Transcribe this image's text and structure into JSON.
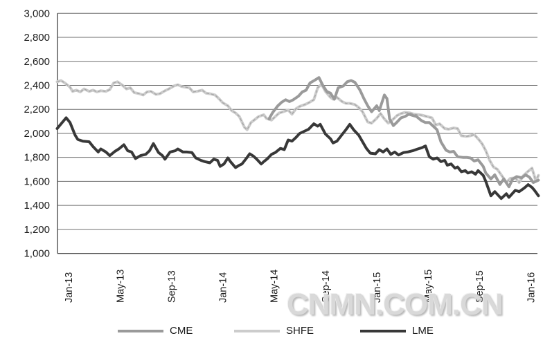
{
  "watermark": "CNMN.COM.CN",
  "chart_data": {
    "type": "line",
    "title": "",
    "xlabel": "",
    "ylabel": "",
    "ylim": [
      1000,
      3000
    ],
    "y_tick_step": 200,
    "y_tick_labels": [
      "1,000",
      "1,200",
      "1,400",
      "1,600",
      "1,800",
      "2,000",
      "2,200",
      "2,400",
      "2,600",
      "2,800",
      "3,000"
    ],
    "x_tick_labels": [
      "Jan-13",
      "May-13",
      "Sep-13",
      "Jan-14",
      "May-14",
      "Sep-14",
      "Jan-15",
      "May-15",
      "Sep-15",
      "Jan-16"
    ],
    "x_range_months": [
      -0.9,
      36.6
    ],
    "grid": "horizontal",
    "legend_position": "bottom",
    "legend": [
      {
        "label": "CME",
        "color": "#9a9a9a"
      },
      {
        "label": "SHFE",
        "color": "#cccccc"
      },
      {
        "label": "LME",
        "color": "#383838"
      }
    ],
    "series": [
      {
        "name": "SHFE",
        "color": "#cccccc",
        "style": "light-with-dashed-core",
        "points": [
          [
            -0.9,
            2430
          ],
          [
            -0.6,
            2440
          ],
          [
            -0.3,
            2420
          ],
          [
            0.1,
            2385
          ],
          [
            0.3,
            2350
          ],
          [
            0.6,
            2360
          ],
          [
            0.9,
            2345
          ],
          [
            1.2,
            2370
          ],
          [
            1.6,
            2350
          ],
          [
            1.9,
            2360
          ],
          [
            2.2,
            2345
          ],
          [
            2.5,
            2355
          ],
          [
            2.9,
            2350
          ],
          [
            3.2,
            2365
          ],
          [
            3.5,
            2420
          ],
          [
            3.8,
            2430
          ],
          [
            4.2,
            2400
          ],
          [
            4.5,
            2370
          ],
          [
            4.8,
            2380
          ],
          [
            5.1,
            2340
          ],
          [
            5.5,
            2330
          ],
          [
            5.8,
            2320
          ],
          [
            6.1,
            2345
          ],
          [
            6.4,
            2350
          ],
          [
            6.8,
            2325
          ],
          [
            7.1,
            2330
          ],
          [
            7.5,
            2355
          ],
          [
            7.8,
            2370
          ],
          [
            8.2,
            2395
          ],
          [
            8.5,
            2405
          ],
          [
            8.8,
            2390
          ],
          [
            9.1,
            2385
          ],
          [
            9.4,
            2380
          ],
          [
            9.7,
            2345
          ],
          [
            10.0,
            2350
          ],
          [
            10.4,
            2360
          ],
          [
            10.7,
            2335
          ],
          [
            11.0,
            2330
          ],
          [
            11.4,
            2320
          ],
          [
            11.7,
            2290
          ],
          [
            12.0,
            2255
          ],
          [
            12.4,
            2230
          ],
          [
            12.7,
            2190
          ],
          [
            13.0,
            2170
          ],
          [
            13.3,
            2140
          ],
          [
            13.7,
            2050
          ],
          [
            13.9,
            2030
          ],
          [
            14.2,
            2090
          ],
          [
            14.5,
            2115
          ],
          [
            14.8,
            2140
          ],
          [
            15.2,
            2155
          ],
          [
            15.4,
            2125
          ],
          [
            15.8,
            2110
          ],
          [
            16.1,
            2140
          ],
          [
            16.4,
            2170
          ],
          [
            16.7,
            2180
          ],
          [
            17.1,
            2195
          ],
          [
            17.4,
            2160
          ],
          [
            17.7,
            2205
          ],
          [
            18.0,
            2225
          ],
          [
            18.4,
            2240
          ],
          [
            18.7,
            2255
          ],
          [
            19.1,
            2280
          ],
          [
            19.4,
            2380
          ],
          [
            19.7,
            2410
          ],
          [
            20.0,
            2350
          ],
          [
            20.4,
            2300
          ],
          [
            20.6,
            2285
          ],
          [
            20.9,
            2300
          ],
          [
            21.3,
            2265
          ],
          [
            21.6,
            2250
          ],
          [
            21.9,
            2250
          ],
          [
            22.3,
            2240
          ],
          [
            22.6,
            2215
          ],
          [
            22.9,
            2180
          ],
          [
            23.3,
            2095
          ],
          [
            23.6,
            2085
          ],
          [
            24.0,
            2125
          ],
          [
            24.3,
            2165
          ],
          [
            24.6,
            2120
          ],
          [
            24.9,
            2085
          ],
          [
            25.2,
            2110
          ],
          [
            25.6,
            2150
          ],
          [
            25.9,
            2165
          ],
          [
            26.2,
            2175
          ],
          [
            26.6,
            2170
          ],
          [
            26.9,
            2160
          ],
          [
            27.3,
            2155
          ],
          [
            27.6,
            2150
          ],
          [
            27.9,
            2140
          ],
          [
            28.3,
            2130
          ],
          [
            28.6,
            2070
          ],
          [
            28.9,
            2080
          ],
          [
            29.3,
            2040
          ],
          [
            29.6,
            2035
          ],
          [
            30.0,
            2045
          ],
          [
            30.3,
            2040
          ],
          [
            30.6,
            1980
          ],
          [
            31.0,
            1975
          ],
          [
            31.3,
            1980
          ],
          [
            31.6,
            1990
          ],
          [
            31.9,
            1955
          ],
          [
            32.2,
            1915
          ],
          [
            32.5,
            1855
          ],
          [
            32.8,
            1775
          ],
          [
            33.1,
            1720
          ],
          [
            33.4,
            1700
          ],
          [
            33.8,
            1640
          ],
          [
            34.1,
            1590
          ],
          [
            34.4,
            1625
          ],
          [
            34.8,
            1630
          ],
          [
            35.1,
            1590
          ],
          [
            35.4,
            1645
          ],
          [
            35.7,
            1675
          ],
          [
            36.1,
            1710
          ],
          [
            36.3,
            1640
          ],
          [
            36.4,
            1600
          ],
          [
            36.6,
            1650
          ]
        ]
      },
      {
        "name": "CME",
        "color": "#9a9a9a",
        "style": "solid",
        "points": [
          [
            15.6,
            2120
          ],
          [
            15.9,
            2175
          ],
          [
            16.3,
            2230
          ],
          [
            16.6,
            2260
          ],
          [
            16.9,
            2280
          ],
          [
            17.2,
            2265
          ],
          [
            17.5,
            2280
          ],
          [
            17.9,
            2310
          ],
          [
            18.2,
            2345
          ],
          [
            18.5,
            2360
          ],
          [
            18.8,
            2420
          ],
          [
            19.2,
            2445
          ],
          [
            19.5,
            2465
          ],
          [
            19.8,
            2400
          ],
          [
            20.1,
            2350
          ],
          [
            20.4,
            2335
          ],
          [
            20.7,
            2285
          ],
          [
            21.0,
            2380
          ],
          [
            21.4,
            2395
          ],
          [
            21.7,
            2430
          ],
          [
            22.0,
            2440
          ],
          [
            22.3,
            2425
          ],
          [
            22.7,
            2360
          ],
          [
            23.0,
            2290
          ],
          [
            23.3,
            2230
          ],
          [
            23.6,
            2180
          ],
          [
            24.0,
            2230
          ],
          [
            24.2,
            2190
          ],
          [
            24.6,
            2320
          ],
          [
            24.8,
            2290
          ],
          [
            25.0,
            2120
          ],
          [
            25.3,
            2065
          ],
          [
            25.5,
            2085
          ],
          [
            25.9,
            2130
          ],
          [
            26.2,
            2140
          ],
          [
            26.5,
            2160
          ],
          [
            26.8,
            2150
          ],
          [
            27.1,
            2140
          ],
          [
            27.5,
            2105
          ],
          [
            27.8,
            2090
          ],
          [
            28.1,
            2090
          ],
          [
            28.4,
            2060
          ],
          [
            28.7,
            2030
          ],
          [
            29.0,
            1930
          ],
          [
            29.4,
            1860
          ],
          [
            29.7,
            1845
          ],
          [
            30.0,
            1850
          ],
          [
            30.3,
            1805
          ],
          [
            30.7,
            1800
          ],
          [
            31.0,
            1800
          ],
          [
            31.3,
            1795
          ],
          [
            31.6,
            1770
          ],
          [
            31.9,
            1780
          ],
          [
            32.3,
            1725
          ],
          [
            32.5,
            1670
          ],
          [
            32.9,
            1620
          ],
          [
            33.2,
            1655
          ],
          [
            33.6,
            1575
          ],
          [
            33.9,
            1620
          ],
          [
            34.3,
            1555
          ],
          [
            34.6,
            1620
          ],
          [
            34.9,
            1640
          ],
          [
            35.3,
            1630
          ],
          [
            35.6,
            1655
          ],
          [
            35.9,
            1635
          ],
          [
            36.2,
            1590
          ],
          [
            36.6,
            1610
          ]
        ]
      },
      {
        "name": "LME",
        "color": "#383838",
        "style": "solid",
        "points": [
          [
            -0.9,
            2040
          ],
          [
            -0.2,
            2130
          ],
          [
            0.1,
            2090
          ],
          [
            0.5,
            1985
          ],
          [
            0.7,
            1950
          ],
          [
            1.1,
            1935
          ],
          [
            1.6,
            1930
          ],
          [
            1.9,
            1890
          ],
          [
            2.3,
            1845
          ],
          [
            2.5,
            1870
          ],
          [
            2.9,
            1845
          ],
          [
            3.2,
            1815
          ],
          [
            3.6,
            1850
          ],
          [
            3.9,
            1870
          ],
          [
            4.3,
            1905
          ],
          [
            4.6,
            1855
          ],
          [
            4.9,
            1845
          ],
          [
            5.2,
            1790
          ],
          [
            5.6,
            1815
          ],
          [
            6.0,
            1825
          ],
          [
            6.3,
            1855
          ],
          [
            6.6,
            1915
          ],
          [
            7.0,
            1840
          ],
          [
            7.3,
            1815
          ],
          [
            7.5,
            1785
          ],
          [
            7.9,
            1845
          ],
          [
            8.3,
            1855
          ],
          [
            8.5,
            1870
          ],
          [
            8.9,
            1845
          ],
          [
            9.2,
            1845
          ],
          [
            9.6,
            1840
          ],
          [
            9.9,
            1795
          ],
          [
            10.3,
            1775
          ],
          [
            10.6,
            1765
          ],
          [
            11.0,
            1755
          ],
          [
            11.3,
            1785
          ],
          [
            11.6,
            1775
          ],
          [
            11.8,
            1725
          ],
          [
            12.1,
            1745
          ],
          [
            12.4,
            1795
          ],
          [
            12.6,
            1765
          ],
          [
            13.0,
            1715
          ],
          [
            13.3,
            1735
          ],
          [
            13.5,
            1745
          ],
          [
            13.9,
            1800
          ],
          [
            14.1,
            1830
          ],
          [
            14.4,
            1810
          ],
          [
            14.7,
            1780
          ],
          [
            15.0,
            1745
          ],
          [
            15.2,
            1765
          ],
          [
            15.5,
            1790
          ],
          [
            15.8,
            1825
          ],
          [
            16.1,
            1840
          ],
          [
            16.5,
            1875
          ],
          [
            16.8,
            1865
          ],
          [
            17.1,
            1945
          ],
          [
            17.4,
            1935
          ],
          [
            17.7,
            1965
          ],
          [
            18.0,
            2000
          ],
          [
            18.4,
            2020
          ],
          [
            18.7,
            2035
          ],
          [
            19.1,
            2080
          ],
          [
            19.4,
            2060
          ],
          [
            19.6,
            2075
          ],
          [
            20.0,
            1995
          ],
          [
            20.4,
            1955
          ],
          [
            20.6,
            1920
          ],
          [
            20.9,
            1935
          ],
          [
            21.3,
            1990
          ],
          [
            21.6,
            2030
          ],
          [
            21.9,
            2075
          ],
          [
            22.2,
            2030
          ],
          [
            22.6,
            1985
          ],
          [
            22.9,
            1930
          ],
          [
            23.2,
            1875
          ],
          [
            23.5,
            1835
          ],
          [
            23.9,
            1830
          ],
          [
            24.2,
            1865
          ],
          [
            24.5,
            1845
          ],
          [
            24.8,
            1870
          ],
          [
            25.1,
            1825
          ],
          [
            25.4,
            1845
          ],
          [
            25.7,
            1820
          ],
          [
            26.1,
            1840
          ],
          [
            26.4,
            1845
          ],
          [
            26.8,
            1855
          ],
          [
            27.2,
            1870
          ],
          [
            27.5,
            1880
          ],
          [
            27.8,
            1895
          ],
          [
            28.1,
            1805
          ],
          [
            28.4,
            1785
          ],
          [
            28.7,
            1795
          ],
          [
            29.0,
            1765
          ],
          [
            29.3,
            1775
          ],
          [
            29.5,
            1735
          ],
          [
            29.8,
            1745
          ],
          [
            30.1,
            1710
          ],
          [
            30.3,
            1720
          ],
          [
            30.6,
            1680
          ],
          [
            30.9,
            1690
          ],
          [
            31.1,
            1670
          ],
          [
            31.4,
            1680
          ],
          [
            31.7,
            1660
          ],
          [
            31.9,
            1690
          ],
          [
            32.3,
            1650
          ],
          [
            32.5,
            1600
          ],
          [
            32.9,
            1480
          ],
          [
            33.2,
            1515
          ],
          [
            33.7,
            1457
          ],
          [
            34.1,
            1497
          ],
          [
            34.3,
            1467
          ],
          [
            34.8,
            1525
          ],
          [
            35.1,
            1515
          ],
          [
            35.5,
            1545
          ],
          [
            35.8,
            1573
          ],
          [
            36.1,
            1550
          ],
          [
            36.3,
            1525
          ],
          [
            36.6,
            1480
          ]
        ]
      }
    ]
  }
}
